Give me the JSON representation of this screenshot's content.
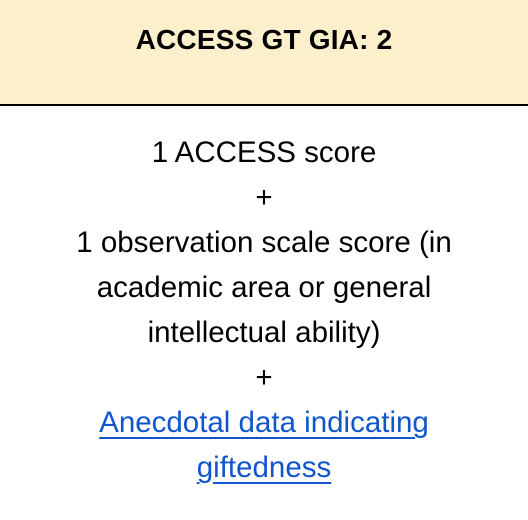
{
  "header": {
    "title": "ACCESS GT GIA: 2"
  },
  "criteria": {
    "line1": "1 ACCESS score",
    "plus1": "+",
    "line2a": "1 observation scale score (in",
    "line2b": "academic area or general",
    "line2c": "intellectual ability)",
    "plus2": "+",
    "link_line1": "Anecdotal data indicating",
    "link_line2": "giftedness"
  },
  "colors": {
    "header_background": "#fcefcc",
    "link": "#1155cc"
  }
}
